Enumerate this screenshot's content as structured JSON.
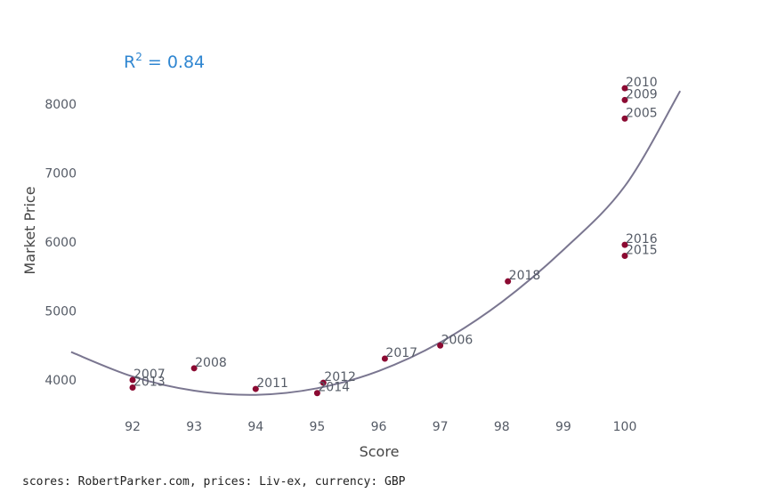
{
  "chart_data": {
    "type": "scatter",
    "xlabel": "Score",
    "ylabel": "Market Price",
    "xlim": [
      91.13,
      100.9
    ],
    "ylim": [
      3480,
      8560
    ],
    "xticks": [
      "92",
      "93",
      "94",
      "95",
      "96",
      "97",
      "98",
      "99",
      "100"
    ],
    "yticks": [
      "4000",
      "5000",
      "6000",
      "7000",
      "8000"
    ],
    "grid": false,
    "r2_label": "0.84",
    "point_color": "#8b0a32",
    "fit_color": "#7a7690",
    "points": [
      {
        "year": "2005",
        "x": 100,
        "y": 7790
      },
      {
        "year": "2006",
        "x": 97,
        "y": 4500
      },
      {
        "year": "2007",
        "x": 92,
        "y": 4000
      },
      {
        "year": "2008",
        "x": 93,
        "y": 4170
      },
      {
        "year": "2009",
        "x": 100,
        "y": 8060
      },
      {
        "year": "2010",
        "x": 100,
        "y": 8230
      },
      {
        "year": "2011",
        "x": 94,
        "y": 3870
      },
      {
        "year": "2012",
        "x": 95.1,
        "y": 3960
      },
      {
        "year": "2013",
        "x": 92,
        "y": 3890
      },
      {
        "year": "2014",
        "x": 95,
        "y": 3810
      },
      {
        "year": "2015",
        "x": 100,
        "y": 5800
      },
      {
        "year": "2016",
        "x": 100,
        "y": 5960
      },
      {
        "year": "2017",
        "x": 96.1,
        "y": 4310
      },
      {
        "year": "2018",
        "x": 98.1,
        "y": 5430
      }
    ],
    "fit_curve": {
      "type": "quadratic",
      "x": [
        91,
        92,
        93,
        94,
        95,
        96,
        97,
        98,
        99,
        100,
        100.9
      ],
      "y": [
        4405,
        4050,
        3845,
        3785,
        3880,
        4130,
        4545,
        5130,
        5885,
        6810,
        8190
      ]
    }
  },
  "source_note": "scores: RobertParker.com, prices: Liv-ex, currency: GBP"
}
